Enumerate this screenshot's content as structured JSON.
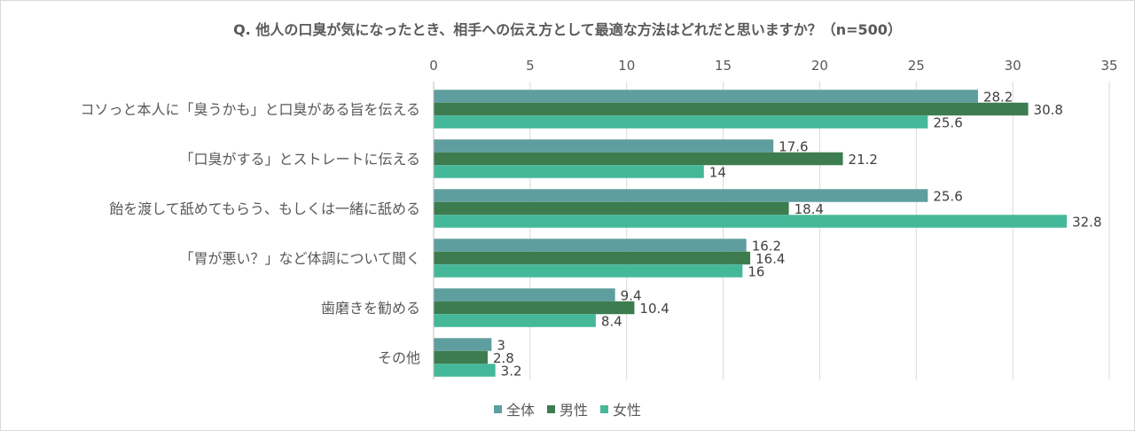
{
  "chart_data": {
    "type": "bar",
    "orientation": "horizontal",
    "title": "Q. 他人の口臭が気になったとき、相手への伝え方として最適な方法はどれだと思いますか？（n=500）",
    "categories": [
      "コソっと本人に「臭うかも」と口臭がある旨を伝える",
      "「口臭がする」とストレートに伝える",
      "飴を渡して舐めてもらう、もしくは一緒に舐める",
      "「胃が悪い？」など体調について聞く",
      "歯磨きを勧める",
      "その他"
    ],
    "series": [
      {
        "name": "全体",
        "color": "#5f9e9e",
        "values": [
          28.2,
          17.6,
          25.6,
          16.2,
          9.4,
          3
        ]
      },
      {
        "name": "男性",
        "color": "#3d7c4f",
        "values": [
          30.8,
          21.2,
          18.4,
          16.4,
          10.4,
          2.8
        ]
      },
      {
        "name": "女性",
        "color": "#45b89a",
        "values": [
          25.6,
          14,
          32.8,
          16,
          8.4,
          3.2
        ]
      }
    ],
    "xlim": [
      0,
      35
    ],
    "xticks": [
      0,
      5,
      10,
      15,
      20,
      25,
      30,
      35
    ],
    "grid": true,
    "legend_position": "bottom"
  }
}
